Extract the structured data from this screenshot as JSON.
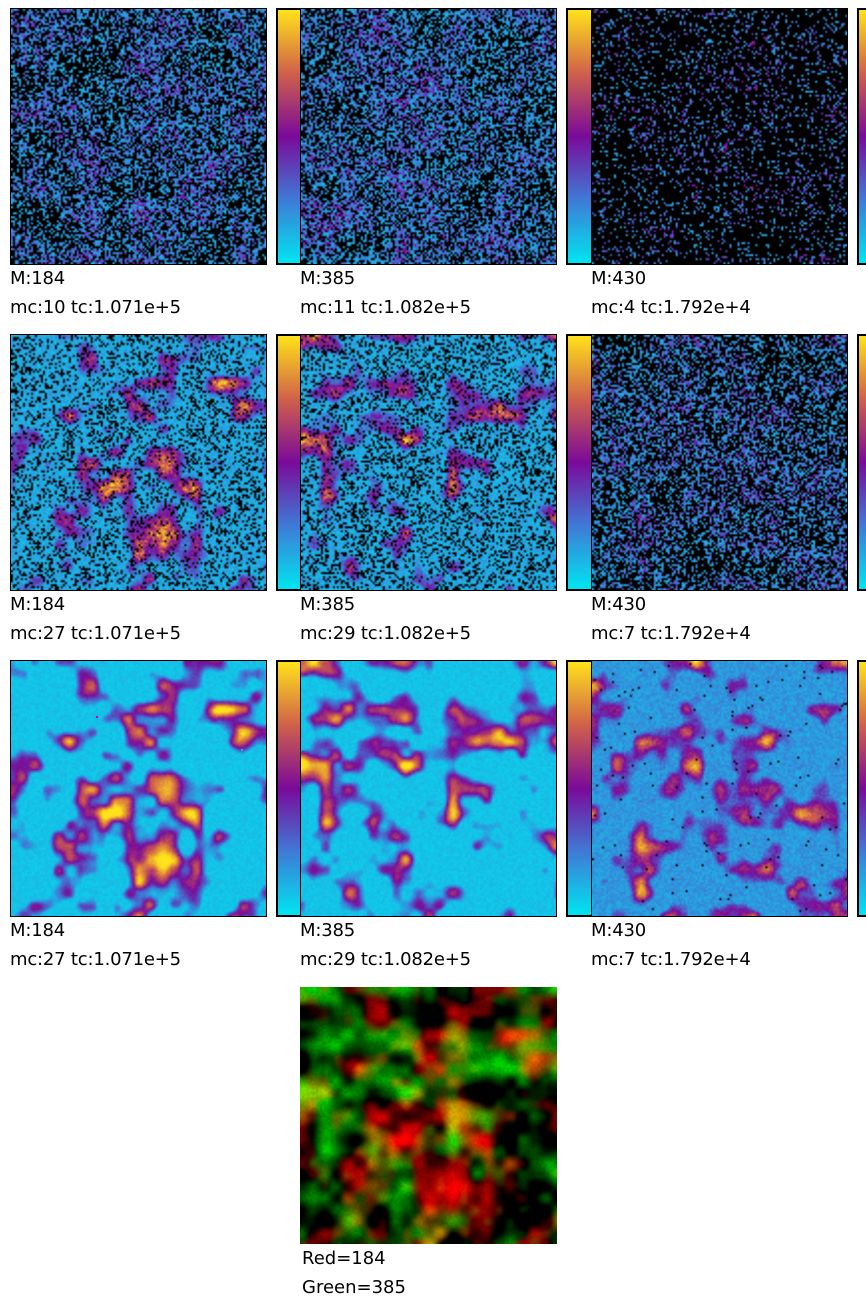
{
  "colormap": {
    "stops": [
      "#00e5f0",
      "#3f7ad6",
      "#7a0a9a",
      "#d0604a",
      "#ffe21a"
    ],
    "background": "#000000"
  },
  "rows": [
    {
      "panels": [
        {
          "mass_label": "M:184",
          "stats_label": "mc:10 tc:1.071e+5"
        },
        {
          "mass_label": "M:385",
          "stats_label": "mc:11 tc:1.082e+5"
        },
        {
          "mass_label": "M:430",
          "stats_label": "mc:4 tc:1.792e+4"
        }
      ]
    },
    {
      "panels": [
        {
          "mass_label": "M:184",
          "stats_label": "mc:27 tc:1.071e+5"
        },
        {
          "mass_label": "M:385",
          "stats_label": "mc:29 tc:1.082e+5"
        },
        {
          "mass_label": "M:430",
          "stats_label": "mc:7 tc:1.792e+4"
        }
      ]
    },
    {
      "panels": [
        {
          "mass_label": "M:184",
          "stats_label": "mc:27 tc:1.071e+5"
        },
        {
          "mass_label": "M:385",
          "stats_label": "mc:29 tc:1.082e+5"
        },
        {
          "mass_label": "M:430",
          "stats_label": "mc:7 tc:1.792e+4"
        }
      ]
    }
  ],
  "overlay": {
    "red_label": "Red=184",
    "green_label": "Green=385",
    "red_color": "#e01010",
    "green_color": "#30e020"
  }
}
